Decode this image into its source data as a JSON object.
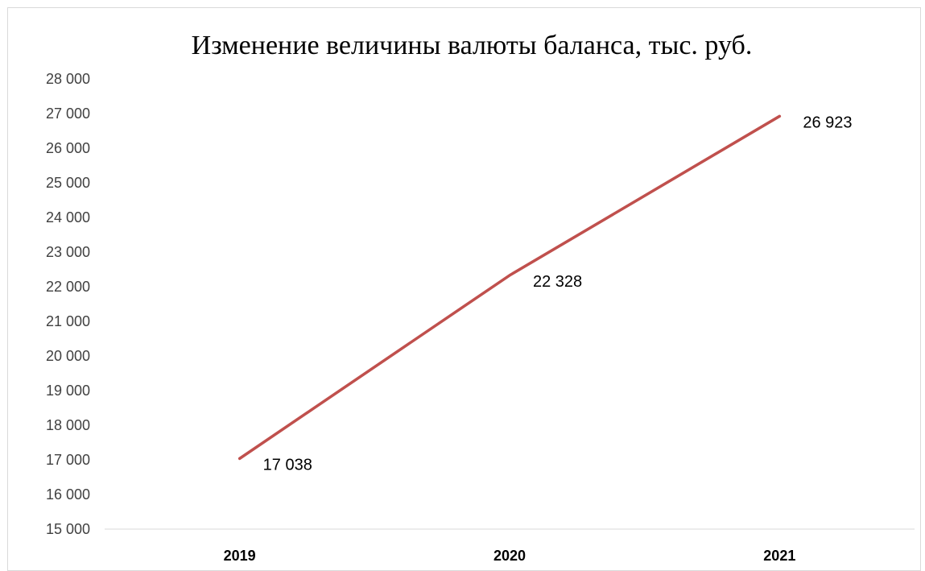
{
  "chart_data": {
    "type": "line",
    "title": "Изменение величины валюты баланса, тыс. руб.",
    "xlabel": "",
    "ylabel": "",
    "categories": [
      "2019",
      "2020",
      "2021"
    ],
    "series": [
      {
        "values": [
          17038,
          22328,
          26923
        ],
        "labels": [
          "17 038",
          "22 328",
          "26 923"
        ],
        "color": "#c0504d"
      }
    ],
    "ylim": [
      15000,
      28000
    ],
    "yticks": [
      15000,
      16000,
      17000,
      18000,
      19000,
      20000,
      21000,
      22000,
      23000,
      24000,
      25000,
      26000,
      27000,
      28000
    ],
    "ytick_labels": [
      "15 000",
      "16 000",
      "17 000",
      "18 000",
      "19 000",
      "20 000",
      "21 000",
      "22 000",
      "23 000",
      "24 000",
      "25 000",
      "26 000",
      "27 000",
      "28 000"
    ],
    "grid": false,
    "legend": "none"
  }
}
